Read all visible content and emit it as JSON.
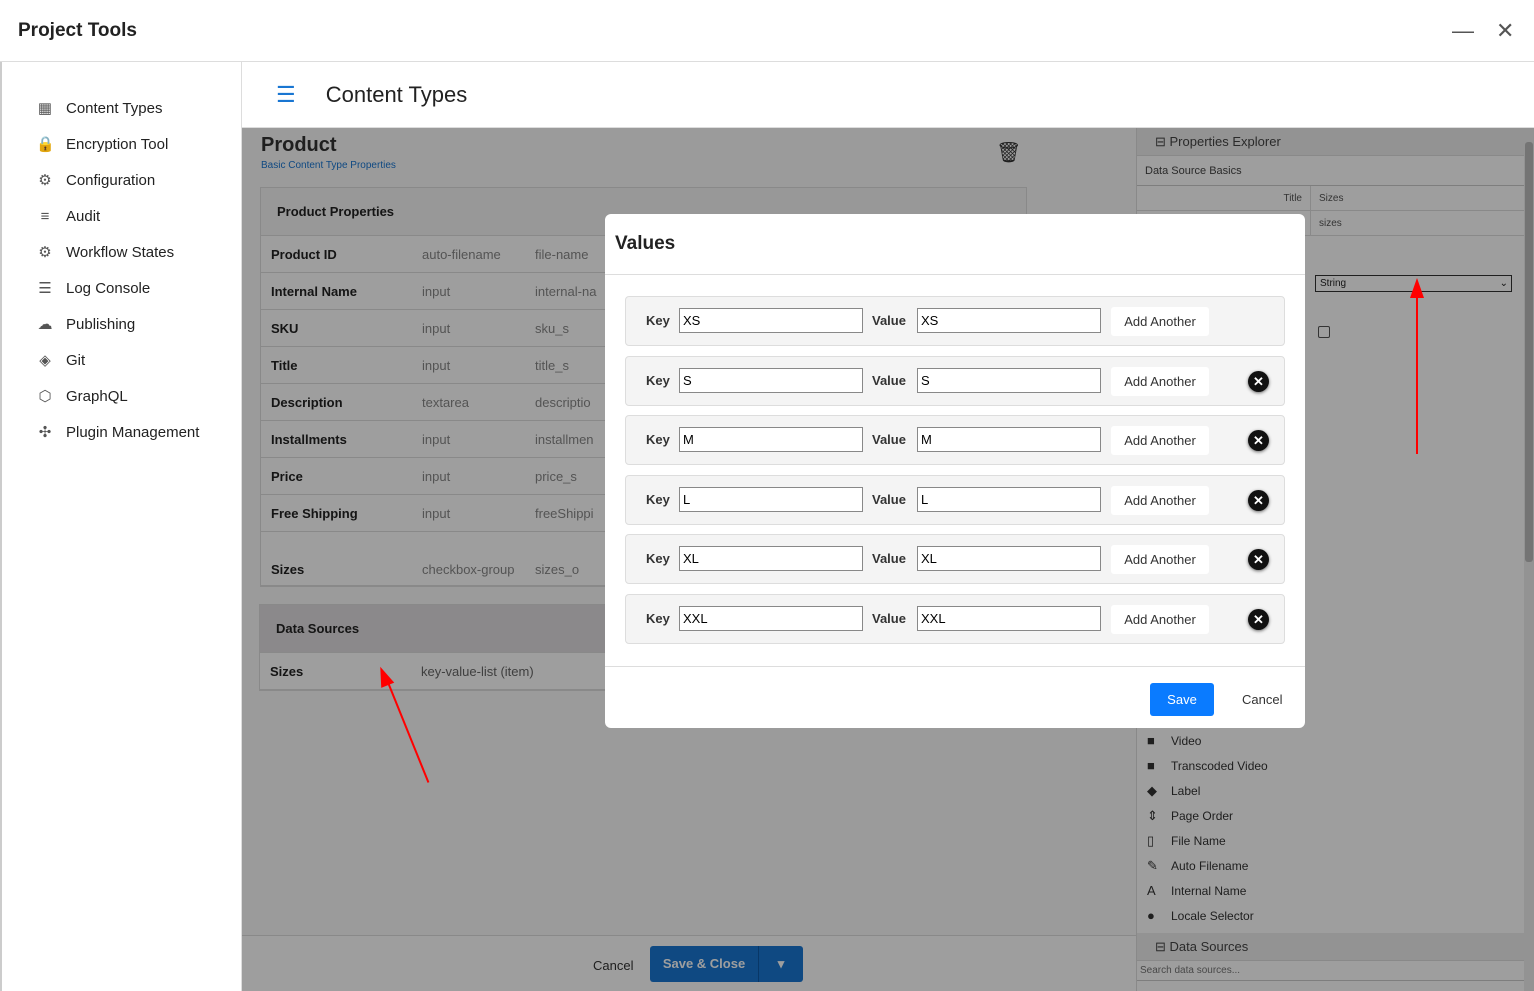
{
  "window": {
    "title": "Project Tools"
  },
  "sidebar": {
    "items": [
      {
        "label": "Content Types",
        "icon": "grid-icon"
      },
      {
        "label": "Encryption Tool",
        "icon": "lock-icon"
      },
      {
        "label": "Configuration",
        "icon": "settings-box-icon"
      },
      {
        "label": "Audit",
        "icon": "list-icon"
      },
      {
        "label": "Workflow States",
        "icon": "gear-icon"
      },
      {
        "label": "Log Console",
        "icon": "lines-icon"
      },
      {
        "label": "Publishing",
        "icon": "cloud-upload-icon"
      },
      {
        "label": "Git",
        "icon": "git-icon"
      },
      {
        "label": "GraphQL",
        "icon": "graphql-icon"
      },
      {
        "label": "Plugin Management",
        "icon": "puzzle-icon"
      }
    ]
  },
  "header": {
    "title": "Content Types"
  },
  "main": {
    "title": "Product",
    "subtitle": "Basic Content Type Properties",
    "properties_header": "Product Properties",
    "properties": [
      [
        "Product ID",
        "auto-filename",
        "file-name"
      ],
      [
        "Internal Name",
        "input",
        "internal-na"
      ],
      [
        "SKU",
        "input",
        "sku_s"
      ],
      [
        "Title",
        "input",
        "title_s"
      ],
      [
        "Description",
        "textarea",
        "descriptio"
      ],
      [
        "Installments",
        "input",
        "installmen"
      ],
      [
        "Price",
        "input",
        "price_s"
      ],
      [
        "Free Shipping",
        "input",
        "freeShippi"
      ],
      [
        "Sizes",
        "checkbox-group",
        "sizes_o"
      ]
    ],
    "data_sources_header": "Data Sources",
    "data_sources": [
      [
        "Sizes",
        "key-value-list (item)"
      ]
    ],
    "footer": {
      "cancel": "Cancel",
      "save_close": "Save & Close"
    }
  },
  "properties_explorer": {
    "title": "Properties Explorer",
    "section": "Data Source Basics",
    "rows": [
      {
        "label": "Title",
        "value": "Sizes"
      },
      {
        "label": "",
        "value": "sizes"
      }
    ],
    "type_select": "String",
    "controls": [
      {
        "label": "Video",
        "icon": "video-icon"
      },
      {
        "label": "Transcoded Video",
        "icon": "video-icon"
      },
      {
        "label": "Label",
        "icon": "tag-icon"
      },
      {
        "label": "Page Order",
        "icon": "sort-icon"
      },
      {
        "label": "File Name",
        "icon": "file-icon"
      },
      {
        "label": "Auto Filename",
        "icon": "file-edit-icon"
      },
      {
        "label": "Internal Name",
        "icon": "font-icon"
      },
      {
        "label": "Locale Selector",
        "icon": "globe-icon"
      }
    ],
    "data_sources_title": "Data Sources",
    "search_placeholder": "Search data sources..."
  },
  "modal": {
    "title": "Values",
    "key_label": "Key",
    "value_label": "Value",
    "add_label": "Add Another",
    "pairs": [
      {
        "key": "XS",
        "value": "XS"
      },
      {
        "key": "S",
        "value": "S"
      },
      {
        "key": "M",
        "value": "M"
      },
      {
        "key": "L",
        "value": "L"
      },
      {
        "key": "XL",
        "value": "XL"
      },
      {
        "key": "XXL",
        "value": "XXL"
      }
    ],
    "save": "Save",
    "cancel": "Cancel"
  },
  "colors": {
    "accent": "#1976d2",
    "modal_save": "#0a7bff",
    "annotation_arrow": "#ff0000"
  }
}
